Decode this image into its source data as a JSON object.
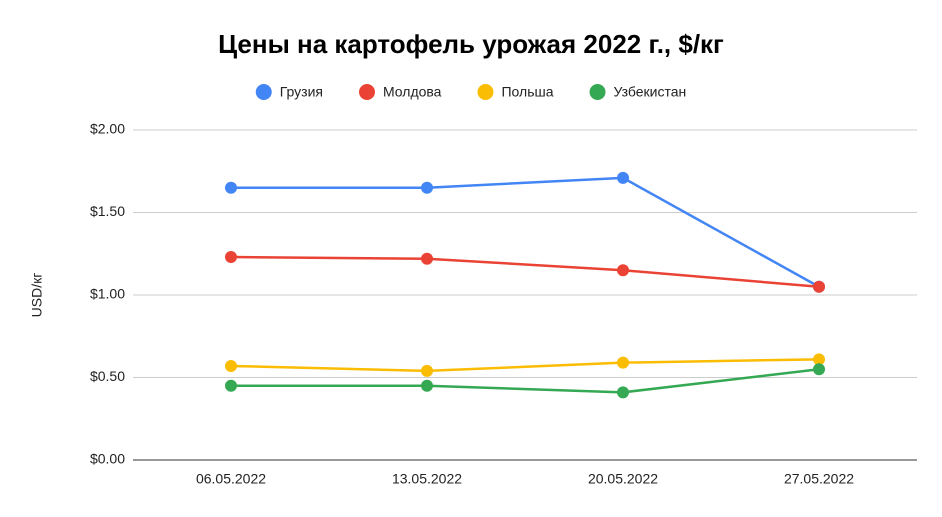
{
  "chart_data": {
    "type": "line",
    "title": "Цены на картофель урожая 2022 г., $/кг",
    "y_label": "USD/кг",
    "categories": [
      "06.05.2022",
      "13.05.2022",
      "20.05.2022",
      "27.05.2022"
    ],
    "series": [
      {
        "name": "Грузия",
        "color": "#4285f4",
        "values": [
          1.65,
          1.65,
          1.71,
          1.05
        ]
      },
      {
        "name": "Молдова",
        "color": "#ea4335",
        "values": [
          1.23,
          1.22,
          1.15,
          1.05
        ]
      },
      {
        "name": "Польша",
        "color": "#fbbc04",
        "values": [
          0.57,
          0.54,
          0.59,
          0.61
        ]
      },
      {
        "name": "Узбекистан",
        "color": "#34a853",
        "values": [
          0.45,
          0.45,
          0.41,
          0.55
        ]
      }
    ],
    "ylim": [
      0,
      2
    ],
    "yticks": [
      {
        "value": 0,
        "label": "$0.00"
      },
      {
        "value": 0.5,
        "label": "$0.50"
      },
      {
        "value": 1,
        "label": "$1.00"
      },
      {
        "value": 1.5,
        "label": "$1.50"
      },
      {
        "value": 2,
        "label": "$2.00"
      }
    ],
    "grid": true,
    "legend": "top"
  }
}
